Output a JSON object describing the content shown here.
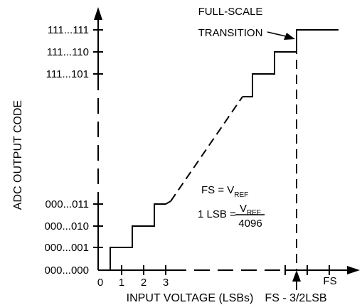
{
  "figure": {
    "y_axis_title": "ADC OUTPUT CODE",
    "x_axis_title": "INPUT VOLTAGE (LSBs)",
    "y_tick_labels": [
      "111...111",
      "111...110",
      "111...101",
      "000...011",
      "000...010",
      "000...001",
      "000...000"
    ],
    "x_tick_labels": [
      "0",
      "1",
      "2",
      "3",
      "FS"
    ],
    "fs_marker_label": "FS - 3/2LSB",
    "annotation": {
      "line1": "FULL-SCALE",
      "line2": "TRANSITION"
    },
    "equation1": {
      "lhs": "FS = V",
      "subscript": "REF"
    },
    "equation2": {
      "lhs": "1 LSB =",
      "numerator": "V",
      "numerator_subscript": "REF",
      "denominator": "4096"
    }
  }
}
